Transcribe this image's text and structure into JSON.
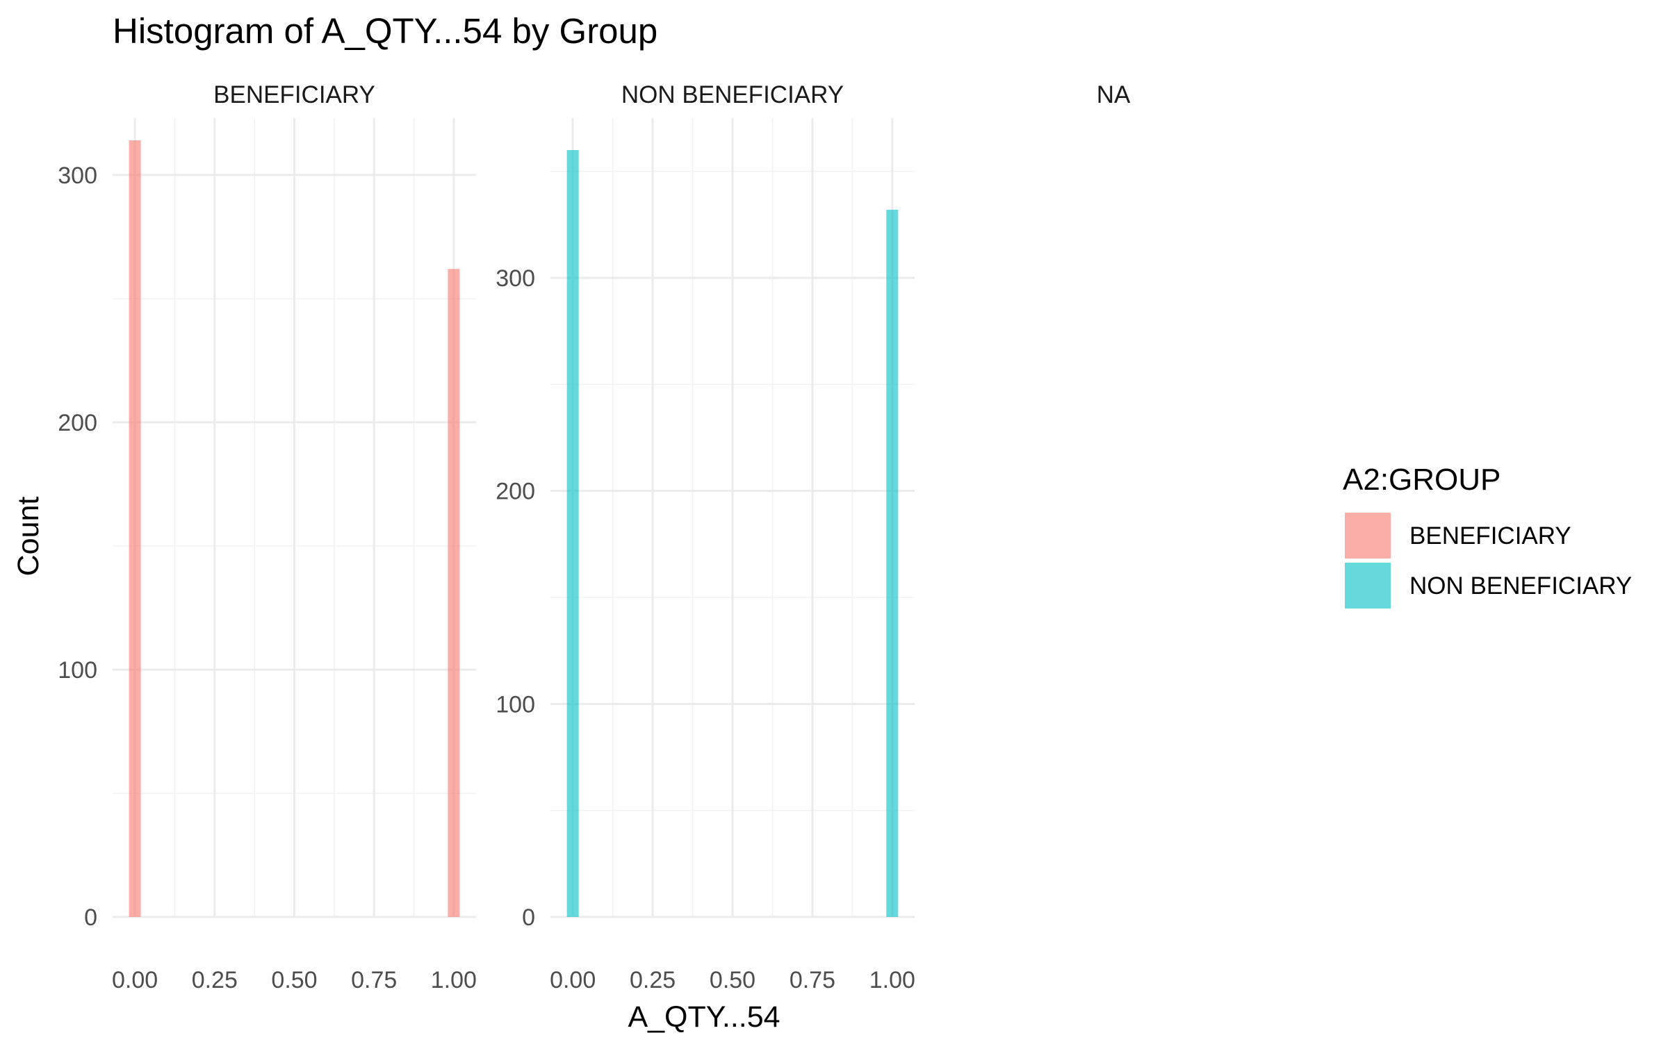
{
  "chart_data": {
    "type": "bar",
    "title": "Histogram of A_QTY...54 by Group",
    "xlabel": "A_QTY...54",
    "ylabel": "Count",
    "x_ticks": [
      "0.00",
      "0.25",
      "0.50",
      "0.75",
      "1.00"
    ],
    "x_tick_values": [
      0,
      0.25,
      0.5,
      0.75,
      1
    ],
    "grid": true,
    "facets": [
      {
        "label": "BENEFICIARY",
        "color": "#F8766D",
        "ylim": [
          0,
          323
        ],
        "y_ticks": [
          "0",
          "100",
          "200",
          "300"
        ],
        "y_tick_values": [
          0,
          100,
          200,
          300
        ],
        "x": [
          0,
          1
        ],
        "values": [
          314,
          262
        ]
      },
      {
        "label": "NON BENEFICIARY",
        "color": "#00BFC4",
        "ylim": [
          0,
          375
        ],
        "y_ticks": [
          "0",
          "100",
          "200",
          "300"
        ],
        "y_tick_values": [
          0,
          100,
          200,
          300
        ],
        "x": [
          0,
          1
        ],
        "values": [
          360,
          332
        ]
      },
      {
        "label": "NA",
        "color": "",
        "x": [],
        "values": []
      }
    ],
    "legend": {
      "title": "A2:GROUP",
      "position": "right",
      "items": [
        {
          "label": "BENEFICIARY",
          "color": "#F8766D"
        },
        {
          "label": "NON BENEFICIARY",
          "color": "#00BFC4"
        }
      ]
    }
  }
}
